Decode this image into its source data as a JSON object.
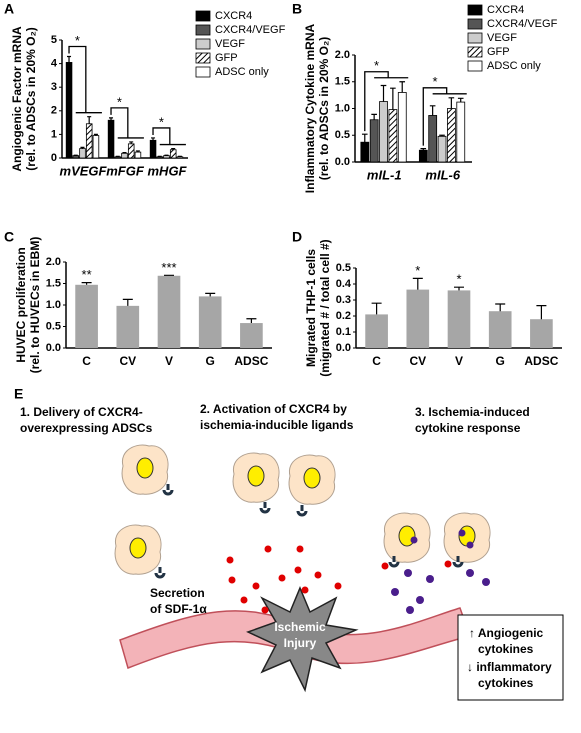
{
  "chart_data": [
    {
      "type": "grouped_bar",
      "panel": "A",
      "ylabel": [
        "Angiogenic Factor mRNA",
        "(rel. to ADSCs in 20% O₂)"
      ],
      "categories": [
        "mVEGF",
        "mFGF",
        "mHGF"
      ],
      "series": [
        {
          "name": "CXCR4",
          "color": "#000000",
          "values": [
            4.05,
            1.6,
            0.75
          ],
          "errors": [
            0.25,
            0.1,
            0.1
          ]
        },
        {
          "name": "CXCR4/VEGF",
          "color": "#555555",
          "values": [
            0.1,
            0.05,
            0.05
          ],
          "errors": [
            0.02,
            0.02,
            0.02
          ]
        },
        {
          "name": "VEGF",
          "color": "#cccccc",
          "values": [
            0.4,
            0.2,
            0.1
          ],
          "errors": [
            0.05,
            0.03,
            0.02
          ]
        },
        {
          "name": "GFP",
          "color": "#000000",
          "hatch": true,
          "values": [
            1.45,
            0.6,
            0.35
          ],
          "errors": [
            0.3,
            0.08,
            0.05
          ]
        },
        {
          "name": "ADSC only",
          "color": "#ffffff",
          "values": [
            0.95,
            0.25,
            0.05
          ],
          "errors": [
            0.05,
            0.05,
            0.02
          ]
        }
      ],
      "ylim": [
        0,
        5
      ],
      "yticks": [
        0,
        1,
        2,
        3,
        4,
        5
      ],
      "annotations": [
        {
          "category": 0,
          "text": "*"
        },
        {
          "category": 1,
          "text": "*"
        },
        {
          "category": 2,
          "text": "*"
        }
      ]
    },
    {
      "type": "grouped_bar",
      "panel": "B",
      "ylabel": [
        "Inflammatory Cytokine mRNA",
        "(rel. to ADSCs in 20% O₂)"
      ],
      "categories": [
        "mIL-1",
        "mIL-6"
      ],
      "series": [
        {
          "name": "CXCR4",
          "color": "#000000",
          "values": [
            0.37,
            0.22
          ],
          "errors": [
            0.15,
            0.03
          ]
        },
        {
          "name": "CXCR4/VEGF",
          "color": "#555555",
          "values": [
            0.79,
            0.87
          ],
          "errors": [
            0.1,
            0.18
          ]
        },
        {
          "name": "VEGF",
          "color": "#cccccc",
          "values": [
            1.13,
            0.48
          ],
          "errors": [
            0.3,
            0.02
          ]
        },
        {
          "name": "GFP",
          "color": "#000000",
          "hatch": true,
          "values": [
            0.98,
            1.0
          ],
          "errors": [
            0.4,
            0.2
          ]
        },
        {
          "name": "ADSC only",
          "color": "#ffffff",
          "values": [
            1.3,
            1.12
          ],
          "errors": [
            0.2,
            0.07
          ]
        }
      ],
      "ylim": [
        0,
        2
      ],
      "yticks": [
        {
          "value": 0,
          "label": "0.0"
        },
        0.5,
        {
          "value": 1,
          "label": "1.0"
        },
        1.5,
        {
          "value": 2,
          "label": "2.0"
        }
      ],
      "annotations": [
        {
          "category": 0,
          "text": "*"
        },
        {
          "category": 1,
          "text": "*"
        }
      ]
    },
    {
      "type": "bar",
      "panel": "C",
      "ylabel": [
        "HUVEC proliferation",
        "(rel. to HUVECs in EBM)"
      ],
      "categories": [
        "C",
        "CV",
        "V",
        "G",
        "ADSC"
      ],
      "color": "#a6a6a6",
      "values": [
        1.47,
        0.98,
        1.68,
        1.2,
        0.58
      ],
      "errors": [
        0.05,
        0.15,
        0.01,
        0.07,
        0.1
      ],
      "ylim": [
        0,
        2
      ],
      "yticks": [
        {
          "value": 0,
          "label": "0.0"
        },
        0.5,
        {
          "value": 1,
          "label": "1.0"
        },
        1.5,
        {
          "value": 2,
          "label": "2.0"
        }
      ],
      "annotations": [
        {
          "category": 0,
          "text": "**"
        },
        {
          "category": 2,
          "text": "***"
        }
      ]
    },
    {
      "type": "bar",
      "panel": "D",
      "ylabel": [
        "Migrated THP-1 cells",
        "(migrated # / total cell #)"
      ],
      "categories": [
        "C",
        "CV",
        "V",
        "G",
        "ADSC"
      ],
      "color": "#a6a6a6",
      "values": [
        0.21,
        0.365,
        0.36,
        0.23,
        0.18
      ],
      "errors": [
        0.07,
        0.07,
        0.02,
        0.045,
        0.085
      ],
      "ylim": [
        0,
        0.5
      ],
      "yticks": [
        {
          "value": 0,
          "label": "0.0"
        },
        0.1,
        0.2,
        0.3,
        0.4,
        0.5
      ],
      "annotations": [
        {
          "category": 1,
          "text": "*"
        },
        {
          "category": 2,
          "text": "*"
        }
      ]
    }
  ],
  "diagram": {
    "panel": "E",
    "step1": [
      "1. Delivery of CXCR4-",
      "overexpressing ADSCs"
    ],
    "step2": [
      "2. Activation of CXCR4 by",
      "ischemia-inducible ligands"
    ],
    "step3": [
      "3. Ischemia-induced",
      "cytokine response"
    ],
    "secretion": [
      "Secretion",
      "of SDF-1α"
    ],
    "injury": [
      "Ischemic",
      "Injury"
    ],
    "outcome": [
      "↑ Angiogenic",
      "cytokines",
      "↓ inflammatory",
      "cytokines"
    ]
  }
}
